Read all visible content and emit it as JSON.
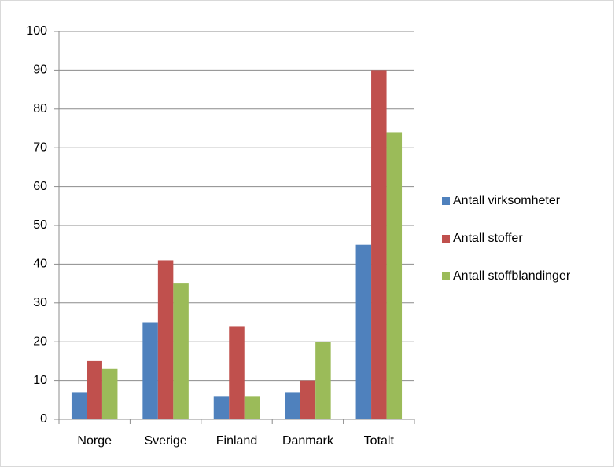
{
  "chart_data": {
    "type": "bar",
    "categories": [
      "Norge",
      "Sverige",
      "Finland",
      "Danmark",
      "Totalt"
    ],
    "series": [
      {
        "name": "Antall virksomheter",
        "color": "#4f81bd",
        "values": [
          7,
          25,
          6,
          7,
          45
        ]
      },
      {
        "name": "Antall stoffer",
        "color": "#c0504d",
        "values": [
          15,
          41,
          24,
          10,
          90
        ]
      },
      {
        "name": "Antall stoffblandinger",
        "color": "#9bbb59",
        "values": [
          13,
          35,
          6,
          20,
          74
        ]
      }
    ],
    "ylim": [
      0,
      100
    ],
    "yticks": [
      0,
      10,
      20,
      30,
      40,
      50,
      60,
      70,
      80,
      90,
      100
    ],
    "grid": true,
    "legend": "right"
  }
}
